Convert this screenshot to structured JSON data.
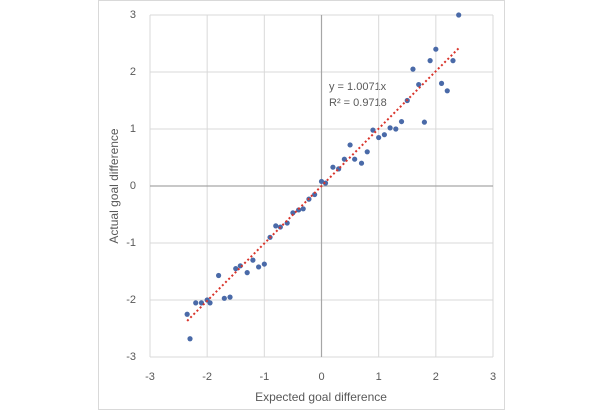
{
  "chart_data": {
    "type": "scatter",
    "x_label": "Expected goal difference",
    "y_label": "Actual goal difference",
    "annotations": [
      "y = 1.0071x",
      "R² = 0.9718"
    ],
    "color": "#4a6aa8",
    "trendline": {
      "slope": 1.0071,
      "xrange": [
        -2.35,
        2.4
      ],
      "color": "#d9342b"
    },
    "xlim": [
      -3,
      3
    ],
    "ylim": [
      -3,
      3
    ],
    "xticks": [
      -3,
      -2,
      -1,
      0,
      1,
      2,
      3
    ],
    "yticks": [
      -3,
      -2,
      -1,
      0,
      1,
      2,
      3
    ],
    "grid": true,
    "x": [
      -2.35,
      -2.3,
      -2.2,
      -2.1,
      -2.0,
      -1.95,
      -1.8,
      -1.7,
      -1.6,
      -1.5,
      -1.42,
      -1.3,
      -1.2,
      -1.1,
      -1.0,
      -0.9,
      -0.8,
      -0.72,
      -0.6,
      -0.5,
      -0.4,
      -0.32,
      -0.22,
      -0.12,
      0.0,
      0.07,
      0.2,
      0.3,
      0.4,
      0.5,
      0.58,
      0.7,
      0.8,
      0.9,
      1.0,
      1.1,
      1.2,
      1.3,
      1.4,
      1.5,
      1.6,
      1.7,
      1.8,
      1.9,
      2.0,
      2.1,
      2.2,
      2.3,
      2.4
    ],
    "y": [
      -2.25,
      -2.68,
      -2.05,
      -2.05,
      -2.0,
      -2.05,
      -1.57,
      -1.97,
      -1.95,
      -1.45,
      -1.4,
      -1.52,
      -1.3,
      -1.42,
      -1.37,
      -0.9,
      -0.7,
      -0.72,
      -0.65,
      -0.47,
      -0.42,
      -0.4,
      -0.23,
      -0.15,
      0.08,
      0.05,
      0.33,
      0.3,
      0.47,
      0.72,
      0.47,
      0.4,
      0.6,
      0.98,
      0.85,
      0.9,
      1.02,
      1.0,
      1.13,
      1.5,
      2.05,
      1.78,
      1.12,
      2.2,
      2.4,
      1.8,
      1.67,
      2.2,
      3.0
    ]
  }
}
